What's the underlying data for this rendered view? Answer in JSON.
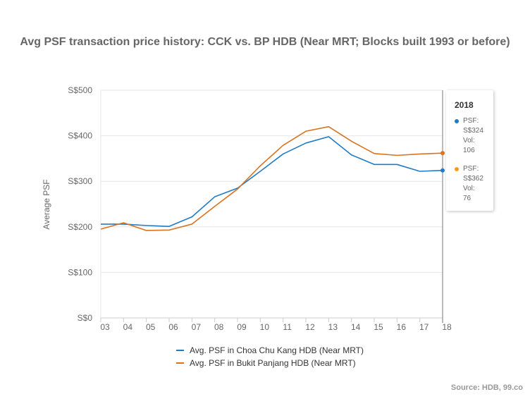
{
  "chart_data": {
    "type": "line",
    "title": "Avg PSF transaction price history: CCK vs. BP HDB (Near MRT; Blocks built 1993 or before)",
    "ylabel": "Average PSF",
    "xlabel": "",
    "x": [
      "03",
      "04",
      "05",
      "06",
      "07",
      "08",
      "09",
      "10",
      "11",
      "12",
      "13",
      "14",
      "15",
      "16",
      "17",
      "18"
    ],
    "y_ticks": [
      "S$0",
      "S$100",
      "S$200",
      "S$300",
      "S$400",
      "S$500"
    ],
    "ylim": [
      0,
      500
    ],
    "grid": true,
    "legend_position": "bottom",
    "series": [
      {
        "name": "Avg. PSF in Choa Chu Kang HDB (Near MRT)",
        "color": "#1f7cc4",
        "values": [
          206,
          206,
          203,
          201,
          222,
          266,
          285,
          322,
          360,
          384,
          398,
          358,
          337,
          337,
          322,
          324
        ]
      },
      {
        "name": "Avg. PSF in Bukit Panjang HDB (Near MRT)",
        "color": "#d9731f",
        "values": [
          195,
          209,
          192,
          193,
          206,
          245,
          283,
          334,
          379,
          410,
          420,
          388,
          361,
          357,
          360,
          362
        ]
      }
    ]
  },
  "tooltip": {
    "year": "2018",
    "entries": [
      {
        "psf_label": "PSF:",
        "psf_value": "S$324",
        "vol_label": "Vol:",
        "vol_value": "106",
        "color": "#1f7cc4"
      },
      {
        "psf_label": "PSF:",
        "psf_value": "S$362",
        "vol_label": "Vol:",
        "vol_value": "76",
        "color": "#ff9a1f"
      }
    ]
  },
  "source": "Source: HDB, 99.co"
}
